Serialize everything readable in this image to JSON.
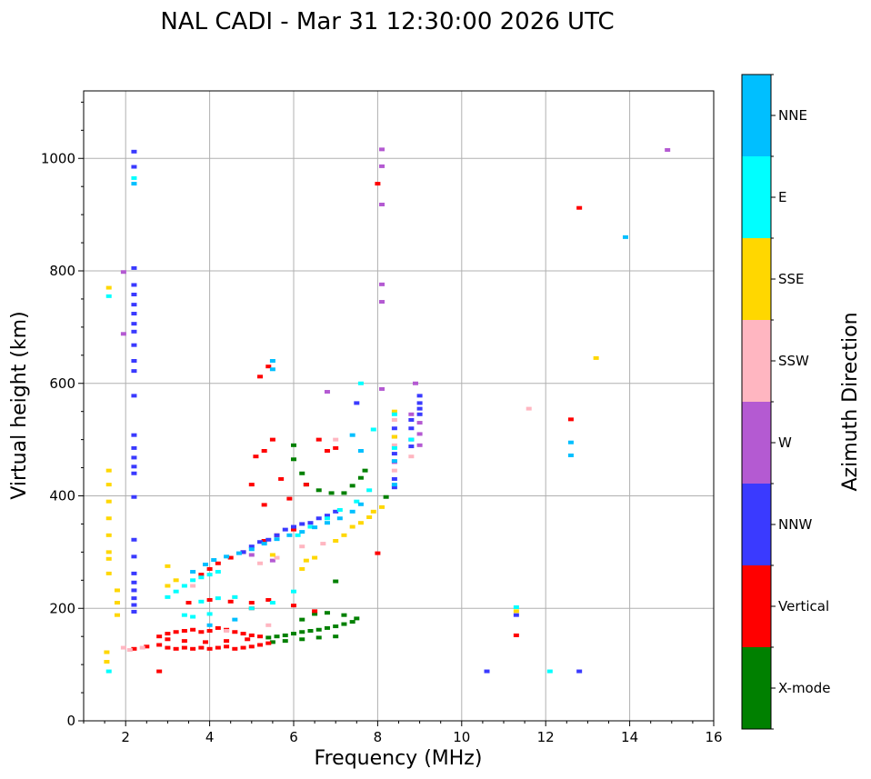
{
  "chart_data": {
    "type": "scatter",
    "title": "NAL CADI - Mar 31 12:30:00 2026 UTC",
    "xlabel": "Frequency (MHz)",
    "ylabel": "Virtual height (km)",
    "xlim": [
      1,
      16
    ],
    "ylim": [
      0,
      1120
    ],
    "xticks": [
      2,
      4,
      6,
      8,
      10,
      12,
      14,
      16
    ],
    "yticks": [
      0,
      200,
      400,
      600,
      800,
      1000
    ],
    "grid": true,
    "colorbar": {
      "title": "Azimuth Direction",
      "categories": [
        {
          "name": "X-mode",
          "color": "#008000"
        },
        {
          "name": "Vertical",
          "color": "#ff0000"
        },
        {
          "name": "NNW",
          "color": "#3a3aff"
        },
        {
          "name": "W",
          "color": "#b45ad2"
        },
        {
          "name": "SSW",
          "color": "#ffb6c1"
        },
        {
          "name": "SSE",
          "color": "#ffd700"
        },
        {
          "name": "E",
          "color": "#00ffff"
        },
        {
          "name": "NNE",
          "color": "#00bfff"
        }
      ]
    },
    "series": [
      {
        "name": "X-mode",
        "color": "#008000",
        "points": [
          [
            5.4,
            148
          ],
          [
            5.6,
            150
          ],
          [
            5.8,
            152
          ],
          [
            6.0,
            155
          ],
          [
            6.2,
            158
          ],
          [
            6.4,
            160
          ],
          [
            6.6,
            162
          ],
          [
            6.8,
            165
          ],
          [
            7.0,
            168
          ],
          [
            7.2,
            172
          ],
          [
            7.4,
            176
          ],
          [
            7.5,
            182
          ],
          [
            5.5,
            140
          ],
          [
            5.8,
            142
          ],
          [
            6.2,
            145
          ],
          [
            6.6,
            148
          ],
          [
            7.0,
            150
          ],
          [
            6.2,
            180
          ],
          [
            6.5,
            190
          ],
          [
            6.8,
            192
          ],
          [
            7.2,
            188
          ],
          [
            6.0,
            490
          ],
          [
            6.0,
            465
          ],
          [
            6.2,
            440
          ],
          [
            6.3,
            420
          ],
          [
            6.6,
            410
          ],
          [
            6.9,
            405
          ],
          [
            7.2,
            405
          ],
          [
            7.4,
            418
          ],
          [
            7.6,
            432
          ],
          [
            7.7,
            445
          ],
          [
            7.0,
            248
          ],
          [
            8.2,
            398
          ]
        ]
      },
      {
        "name": "Vertical",
        "color": "#ff0000",
        "points": [
          [
            2.2,
            128
          ],
          [
            2.5,
            132
          ],
          [
            2.8,
            135
          ],
          [
            3.0,
            130
          ],
          [
            3.2,
            128
          ],
          [
            3.4,
            130
          ],
          [
            3.6,
            128
          ],
          [
            3.8,
            130
          ],
          [
            4.0,
            128
          ],
          [
            4.2,
            130
          ],
          [
            4.4,
            132
          ],
          [
            4.6,
            128
          ],
          [
            4.8,
            130
          ],
          [
            5.0,
            132
          ],
          [
            5.2,
            135
          ],
          [
            5.4,
            138
          ],
          [
            2.8,
            150
          ],
          [
            3.0,
            155
          ],
          [
            3.2,
            158
          ],
          [
            3.4,
            160
          ],
          [
            3.6,
            162
          ],
          [
            3.8,
            158
          ],
          [
            4.0,
            160
          ],
          [
            4.2,
            165
          ],
          [
            4.4,
            162
          ],
          [
            4.6,
            158
          ],
          [
            4.8,
            155
          ],
          [
            5.0,
            152
          ],
          [
            5.2,
            150
          ],
          [
            3.0,
            145
          ],
          [
            3.4,
            142
          ],
          [
            3.9,
            140
          ],
          [
            4.4,
            142
          ],
          [
            4.9,
            145
          ],
          [
            3.5,
            210
          ],
          [
            4.0,
            215
          ],
          [
            4.5,
            212
          ],
          [
            5.0,
            210
          ],
          [
            5.4,
            215
          ],
          [
            6.0,
            205
          ],
          [
            6.5,
            195
          ],
          [
            3.8,
            260
          ],
          [
            4.0,
            270
          ],
          [
            4.2,
            280
          ],
          [
            4.5,
            290
          ],
          [
            4.8,
            300
          ],
          [
            5.3,
            320
          ],
          [
            5.6,
            330
          ],
          [
            6.0,
            340
          ],
          [
            5.2,
            612
          ],
          [
            5.4,
            630
          ],
          [
            5.1,
            470
          ],
          [
            5.3,
            480
          ],
          [
            5.5,
            500
          ],
          [
            5.7,
            430
          ],
          [
            5.9,
            395
          ],
          [
            6.3,
            420
          ],
          [
            6.6,
            500
          ],
          [
            6.8,
            480
          ],
          [
            7.0,
            485
          ],
          [
            5.0,
            420
          ],
          [
            5.3,
            384
          ],
          [
            8.0,
            955
          ],
          [
            8.0,
            298
          ],
          [
            11.3,
            152
          ],
          [
            12.6,
            536
          ],
          [
            12.8,
            912
          ],
          [
            2.8,
            88
          ],
          [
            5.0,
            200
          ]
        ]
      },
      {
        "name": "NNW",
        "color": "#3a3aff",
        "points": [
          [
            2.2,
            1012
          ],
          [
            2.2,
            985
          ],
          [
            2.2,
            805
          ],
          [
            2.2,
            775
          ],
          [
            2.2,
            758
          ],
          [
            2.2,
            740
          ],
          [
            2.2,
            724
          ],
          [
            2.2,
            706
          ],
          [
            2.2,
            692
          ],
          [
            2.2,
            668
          ],
          [
            2.2,
            640
          ],
          [
            2.2,
            622
          ],
          [
            2.2,
            578
          ],
          [
            2.2,
            508
          ],
          [
            2.2,
            485
          ],
          [
            2.2,
            468
          ],
          [
            2.2,
            452
          ],
          [
            2.2,
            440
          ],
          [
            2.2,
            398
          ],
          [
            2.2,
            322
          ],
          [
            2.2,
            292
          ],
          [
            2.2,
            262
          ],
          [
            2.2,
            246
          ],
          [
            2.2,
            232
          ],
          [
            2.2,
            218
          ],
          [
            2.2,
            206
          ],
          [
            2.2,
            194
          ],
          [
            4.8,
            300
          ],
          [
            5.0,
            310
          ],
          [
            5.2,
            318
          ],
          [
            5.4,
            322
          ],
          [
            5.6,
            330
          ],
          [
            5.8,
            340
          ],
          [
            6.0,
            345
          ],
          [
            6.2,
            350
          ],
          [
            6.4,
            352
          ],
          [
            6.6,
            360
          ],
          [
            6.8,
            365
          ],
          [
            7.0,
            372
          ],
          [
            7.5,
            565
          ],
          [
            9.0,
            578
          ],
          [
            9.0,
            565
          ],
          [
            9.0,
            555
          ],
          [
            9.0,
            545
          ],
          [
            8.8,
            535
          ],
          [
            8.8,
            520
          ],
          [
            8.8,
            500
          ],
          [
            8.8,
            488
          ],
          [
            8.4,
            520
          ],
          [
            8.4,
            475
          ],
          [
            8.4,
            430
          ],
          [
            8.4,
            415
          ],
          [
            11.3,
            188
          ],
          [
            10.6,
            88
          ],
          [
            12.8,
            88
          ]
        ]
      },
      {
        "name": "W",
        "color": "#b45ad2",
        "points": [
          [
            1.95,
            798
          ],
          [
            1.95,
            688
          ],
          [
            8.1,
            1016
          ],
          [
            8.1,
            986
          ],
          [
            8.1,
            918
          ],
          [
            8.1,
            776
          ],
          [
            8.1,
            745
          ],
          [
            8.1,
            590
          ],
          [
            8.9,
            600
          ],
          [
            9.0,
            530
          ],
          [
            9.0,
            510
          ],
          [
            9.0,
            490
          ],
          [
            8.8,
            545
          ],
          [
            8.4,
            505
          ],
          [
            8.4,
            460
          ],
          [
            6.8,
            585
          ],
          [
            14.9,
            1015
          ],
          [
            5.0,
            295
          ],
          [
            5.5,
            285
          ]
        ]
      },
      {
        "name": "SSW",
        "color": "#ffb6c1",
        "points": [
          [
            1.95,
            130
          ],
          [
            2.1,
            126
          ],
          [
            2.4,
            130
          ],
          [
            3.6,
            240
          ],
          [
            4.6,
            220
          ],
          [
            5.2,
            280
          ],
          [
            5.6,
            290
          ],
          [
            6.2,
            310
          ],
          [
            6.7,
            315
          ],
          [
            7.0,
            500
          ],
          [
            8.4,
            535
          ],
          [
            8.4,
            490
          ],
          [
            8.4,
            445
          ],
          [
            8.8,
            470
          ],
          [
            11.6,
            555
          ],
          [
            5.4,
            170
          ],
          [
            4.4,
            160
          ]
        ]
      },
      {
        "name": "SSE",
        "color": "#ffd700",
        "points": [
          [
            1.6,
            445
          ],
          [
            1.6,
            420
          ],
          [
            1.6,
            390
          ],
          [
            1.6,
            360
          ],
          [
            1.6,
            330
          ],
          [
            1.6,
            300
          ],
          [
            1.6,
            288
          ],
          [
            1.6,
            770
          ],
          [
            1.6,
            262
          ],
          [
            1.8,
            232
          ],
          [
            1.8,
            210
          ],
          [
            1.8,
            188
          ],
          [
            1.55,
            122
          ],
          [
            1.55,
            105
          ],
          [
            3.0,
            240
          ],
          [
            3.2,
            250
          ],
          [
            5.5,
            295
          ],
          [
            6.2,
            270
          ],
          [
            6.3,
            285
          ],
          [
            6.5,
            290
          ],
          [
            7.0,
            320
          ],
          [
            7.2,
            330
          ],
          [
            7.4,
            345
          ],
          [
            7.6,
            352
          ],
          [
            7.8,
            362
          ],
          [
            7.9,
            372
          ],
          [
            8.1,
            380
          ],
          [
            8.4,
            550
          ],
          [
            8.4,
            505
          ],
          [
            11.3,
            195
          ],
          [
            13.2,
            645
          ],
          [
            3.0,
            275
          ]
        ]
      },
      {
        "name": "E",
        "color": "#00ffff",
        "points": [
          [
            2.2,
            965
          ],
          [
            1.6,
            755
          ],
          [
            3.0,
            220
          ],
          [
            3.2,
            230
          ],
          [
            3.4,
            240
          ],
          [
            3.6,
            250
          ],
          [
            3.8,
            255
          ],
          [
            4.0,
            260
          ],
          [
            4.2,
            265
          ],
          [
            3.6,
            185
          ],
          [
            4.0,
            190
          ],
          [
            4.2,
            218
          ],
          [
            4.6,
            220
          ],
          [
            3.4,
            188
          ],
          [
            3.8,
            212
          ],
          [
            5.0,
            200
          ],
          [
            5.5,
            210
          ],
          [
            6.1,
            330
          ],
          [
            6.4,
            345
          ],
          [
            6.8,
            360
          ],
          [
            7.1,
            375
          ],
          [
            7.5,
            390
          ],
          [
            7.8,
            410
          ],
          [
            7.6,
            600
          ],
          [
            7.9,
            518
          ],
          [
            8.4,
            545
          ],
          [
            8.4,
            485
          ],
          [
            8.8,
            500
          ],
          [
            11.3,
            202
          ],
          [
            12.1,
            88
          ],
          [
            1.6,
            88
          ],
          [
            6.0,
            230
          ]
        ]
      },
      {
        "name": "NNE",
        "color": "#00bfff",
        "points": [
          [
            2.2,
            955
          ],
          [
            3.6,
            265
          ],
          [
            3.9,
            278
          ],
          [
            4.1,
            286
          ],
          [
            4.4,
            292
          ],
          [
            4.7,
            298
          ],
          [
            5.0,
            305
          ],
          [
            5.3,
            315
          ],
          [
            5.6,
            323
          ],
          [
            5.9,
            330
          ],
          [
            6.2,
            336
          ],
          [
            6.5,
            344
          ],
          [
            6.8,
            352
          ],
          [
            7.1,
            360
          ],
          [
            7.4,
            372
          ],
          [
            7.6,
            385
          ],
          [
            7.4,
            508
          ],
          [
            7.6,
            480
          ],
          [
            5.5,
            625
          ],
          [
            5.5,
            640
          ],
          [
            8.4,
            462
          ],
          [
            8.4,
            420
          ],
          [
            12.6,
            495
          ],
          [
            12.6,
            472
          ],
          [
            13.9,
            860
          ],
          [
            4.0,
            170
          ],
          [
            4.6,
            180
          ]
        ]
      }
    ]
  }
}
